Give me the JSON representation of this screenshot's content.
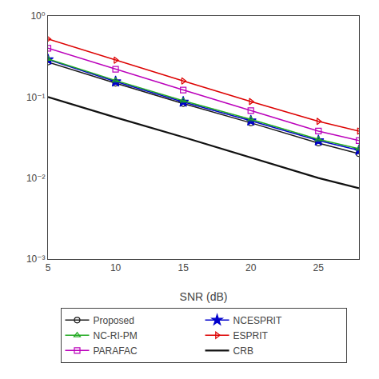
{
  "chart_data": {
    "type": "line",
    "x": [
      5,
      10,
      15,
      20,
      25,
      28
    ],
    "series": [
      {
        "name": "Proposed",
        "color": "#1a1a1a",
        "marker": "circle-open",
        "line_style": "solid",
        "values": [
          0.27,
          0.148,
          0.083,
          0.048,
          0.027,
          0.02
        ]
      },
      {
        "name": "NCESPRIT",
        "color": "#0000cc",
        "marker": "star",
        "line_style": "solid",
        "values": [
          0.29,
          0.155,
          0.087,
          0.051,
          0.029,
          0.022
        ]
      },
      {
        "name": "NC-RI-PM",
        "color": "#22aa22",
        "marker": "triangle-up-open",
        "line_style": "solid",
        "values": [
          0.295,
          0.16,
          0.09,
          0.053,
          0.03,
          0.023
        ]
      },
      {
        "name": "ESPRIT",
        "color": "#dd0000",
        "marker": "triangle-right-open",
        "line_style": "solid",
        "values": [
          0.52,
          0.285,
          0.158,
          0.088,
          0.05,
          0.038
        ]
      },
      {
        "name": "PARAFAC",
        "color": "#bb00bb",
        "marker": "square-open",
        "line_style": "solid",
        "values": [
          0.4,
          0.22,
          0.122,
          0.068,
          0.038,
          0.029
        ]
      },
      {
        "name": "CRB",
        "color": "#111111",
        "marker": "none",
        "line_style": "solid",
        "values": [
          0.1,
          0.056,
          0.032,
          0.018,
          0.01,
          0.0075
        ]
      }
    ],
    "xlabel": "SNR (dB)",
    "xlim": [
      5,
      28
    ],
    "xticks": [
      5,
      10,
      15,
      20,
      25
    ],
    "ylim": [
      0.001,
      1.0
    ],
    "yticks": [
      {
        "value": 0.001,
        "label": "10⁻³"
      },
      {
        "value": 0.01,
        "label": "10⁻²"
      },
      {
        "value": 0.1,
        "label": "10⁻¹"
      },
      {
        "value": 1.0,
        "label": "10⁰"
      }
    ],
    "log": "y",
    "grid": false,
    "legend": "bottom"
  }
}
